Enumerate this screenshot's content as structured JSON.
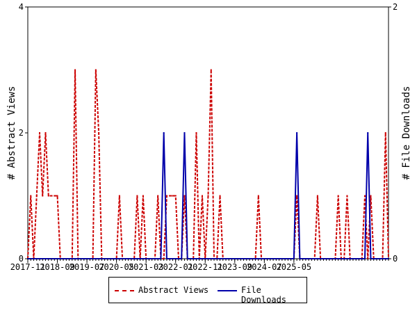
{
  "chart_data": {
    "type": "line",
    "title": "",
    "x_tick_labels": [
      "2017-11",
      "2018-09",
      "2019-07",
      "2020-05",
      "2021-03",
      "2022-01",
      "2022-11",
      "2023-09",
      "2024-07",
      "2025-05"
    ],
    "y_left": {
      "label": "# Abstract Views",
      "min": 0,
      "max": 4,
      "ticks": [
        "0",
        "2",
        "4"
      ]
    },
    "y_right": {
      "label": "# File Downloads",
      "min": 0,
      "max": 2,
      "ticks": [
        "0",
        "2"
      ]
    },
    "x_start": "2017-11",
    "x_end": "2025-06",
    "grid": false,
    "legend_position": "bottom",
    "series": [
      {
        "name": "Abstract Views",
        "axis": "left",
        "color": "#cc0000",
        "style": "dashed",
        "values": [
          0,
          1,
          0,
          1,
          2,
          1,
          2,
          1,
          1,
          1,
          1,
          0,
          0,
          0,
          0,
          0,
          3,
          0,
          0,
          0,
          0,
          0,
          0,
          3,
          2,
          0,
          0,
          0,
          0,
          0,
          0,
          1,
          0,
          0,
          0,
          0,
          0,
          1,
          0,
          1,
          0,
          0,
          0,
          0,
          1,
          0,
          0,
          1,
          1,
          1,
          1,
          0,
          0,
          1,
          0,
          0,
          0,
          2,
          0,
          1,
          0,
          1,
          3,
          0,
          0,
          1,
          0,
          0,
          0,
          0,
          0,
          0,
          0,
          0,
          0,
          0,
          0,
          0,
          1,
          0,
          0,
          0,
          0,
          0,
          0,
          0,
          0,
          0,
          0,
          0,
          0,
          1,
          0,
          0,
          0,
          0,
          0,
          0,
          1,
          0,
          0,
          0,
          0,
          0,
          0,
          1,
          0,
          0,
          1,
          0,
          0,
          0,
          0,
          0,
          1,
          0,
          1,
          0,
          0,
          0,
          0,
          2,
          0
        ]
      },
      {
        "name": "File Downloads",
        "axis": "right",
        "color": "#0000aa",
        "style": "solid",
        "values": [
          0,
          0,
          0,
          0,
          0,
          0,
          0,
          0,
          0,
          0,
          0,
          0,
          0,
          0,
          0,
          0,
          0,
          0,
          0,
          0,
          0,
          0,
          0,
          0,
          0,
          0,
          0,
          0,
          0,
          0,
          0,
          0,
          0,
          0,
          0,
          0,
          0,
          0,
          0,
          0,
          0,
          0,
          0,
          0,
          0,
          0,
          1,
          0,
          0,
          0,
          0,
          0,
          0,
          1,
          0,
          0,
          0,
          0,
          0,
          0,
          0,
          0,
          0,
          0,
          0,
          0,
          0,
          0,
          0,
          0,
          0,
          0,
          0,
          0,
          0,
          0,
          0,
          0,
          0,
          0,
          0,
          0,
          0,
          0,
          0,
          0,
          0,
          0,
          0,
          0,
          0,
          1,
          0,
          0,
          0,
          0,
          0,
          0,
          0,
          0,
          0,
          0,
          0,
          0,
          0,
          0,
          0,
          0,
          0,
          0,
          0,
          0,
          0,
          0,
          0,
          1,
          0,
          0,
          0,
          0,
          0,
          0,
          0
        ]
      }
    ]
  }
}
